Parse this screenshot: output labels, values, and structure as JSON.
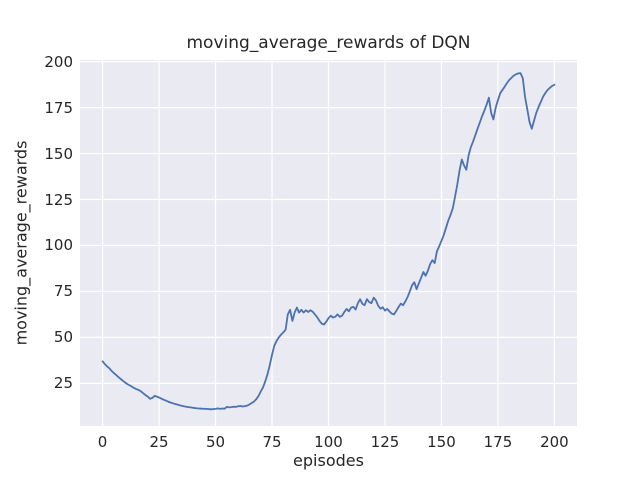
{
  "colors": {
    "figure_background": "#ffffff",
    "axes_background": "#eaeaf2",
    "gridline": "#ffffff",
    "line": "#4c72b0",
    "text": "#262626"
  },
  "chart_data": {
    "type": "line",
    "title": "moving_average_rewards of DQN",
    "xlabel": "episodes",
    "ylabel": "moving_average_rewards",
    "legend": "none",
    "grid": true,
    "x_ticks": [
      0,
      25,
      50,
      75,
      100,
      125,
      150,
      175,
      200
    ],
    "y_ticks": [
      25,
      50,
      75,
      100,
      125,
      150,
      175,
      200
    ],
    "xlim": [
      -10,
      210
    ],
    "ylim": [
      1.8,
      200.9
    ],
    "series_name": "moving_average_rewards",
    "x": [
      0,
      1,
      2,
      3,
      4,
      5,
      6,
      7,
      8,
      9,
      10,
      11,
      12,
      13,
      14,
      15,
      16,
      17,
      18,
      19,
      20,
      21,
      22,
      23,
      24,
      25,
      26,
      27,
      28,
      29,
      30,
      31,
      32,
      33,
      34,
      35,
      36,
      37,
      38,
      39,
      40,
      42,
      44,
      46,
      48,
      50,
      51,
      52,
      53,
      54,
      55,
      56,
      57,
      58,
      59,
      60,
      61,
      62,
      63,
      64,
      65,
      66,
      67,
      68,
      69,
      70,
      71,
      72,
      73,
      74,
      75,
      76,
      77,
      78,
      79,
      80,
      81,
      82,
      83,
      84,
      85,
      86,
      87,
      88,
      89,
      90,
      91,
      92,
      93,
      94,
      95,
      96,
      97,
      98,
      99,
      100,
      101,
      102,
      103,
      104,
      105,
      106,
      107,
      108,
      109,
      110,
      111,
      112,
      113,
      114,
      115,
      116,
      117,
      118,
      119,
      120,
      121,
      122,
      123,
      124,
      125,
      126,
      127,
      128,
      129,
      130,
      131,
      132,
      133,
      134,
      135,
      136,
      137,
      138,
      139,
      140,
      141,
      142,
      143,
      144,
      145,
      146,
      147,
      148,
      149,
      150,
      151,
      152,
      153,
      154,
      155,
      156,
      157,
      158,
      159,
      160,
      161,
      162,
      163,
      164,
      165,
      166,
      167,
      168,
      169,
      170,
      171,
      172,
      173,
      174,
      175,
      176,
      177,
      178,
      179,
      180,
      181,
      182,
      183,
      184,
      185,
      186,
      187,
      188,
      189,
      190,
      191,
      192,
      193,
      194,
      195,
      196,
      197,
      198,
      199,
      200
    ],
    "y": [
      37,
      35.5,
      34.2,
      33.2,
      31.8,
      30.6,
      29.6,
      28.4,
      27.4,
      26.4,
      25.4,
      24.6,
      23.9,
      23.2,
      22.4,
      21.8,
      21.4,
      20.6,
      19.6,
      18.6,
      17.8,
      16.6,
      17.1,
      18.2,
      17.8,
      17.3,
      16.7,
      16.1,
      15.6,
      15.1,
      14.6,
      14.2,
      13.8,
      13.5,
      13.1,
      12.8,
      12.5,
      12.3,
      12.1,
      11.9,
      11.7,
      11.4,
      11.2,
      11.1,
      10.9,
      11.1,
      11.4,
      11.1,
      11.3,
      11.2,
      12.2,
      11.9,
      12.1,
      12.3,
      12.2,
      12.5,
      12.7,
      12.4,
      12.6,
      12.9,
      13.5,
      14.3,
      15.1,
      16.3,
      18.1,
      20.5,
      22.8,
      26,
      30,
      35,
      40.5,
      45.5,
      48,
      50,
      51.5,
      52.7,
      54.2,
      62.5,
      65,
      59,
      63.5,
      66.2,
      63.5,
      65,
      63.5,
      64.8,
      63.8,
      64.8,
      64,
      62.5,
      61,
      59,
      57.5,
      57,
      58.5,
      60.5,
      61.8,
      60.8,
      61.2,
      62.5,
      61.2,
      61.8,
      63.8,
      65.5,
      64.2,
      66.2,
      66.6,
      65.2,
      68.6,
      70.7,
      68.2,
      67.5,
      70.8,
      69.2,
      68.6,
      71.6,
      70.2,
      67.2,
      65.6,
      66.4,
      64.6,
      65.5,
      64.1,
      62.9,
      62.5,
      64.4,
      66.5,
      68.4,
      67.5,
      69.5,
      72,
      75,
      78.4,
      80,
      76.2,
      79.5,
      82.4,
      85.6,
      83.5,
      86.2,
      90,
      92,
      90.4,
      96.8,
      99.6,
      102.6,
      105.6,
      109.6,
      113.4,
      116.6,
      120.2,
      126.4,
      133.2,
      140.6,
      146.8,
      143.6,
      141.2,
      149,
      153.4,
      156.6,
      160,
      163.6,
      167,
      170.4,
      173.4,
      176.6,
      180.4,
      172,
      168.6,
      175,
      179,
      182.8,
      184.6,
      186.4,
      188.4,
      190,
      191.2,
      192.4,
      193.1,
      193.6,
      193.8,
      191,
      181,
      174,
      167,
      163.5,
      168,
      172.2,
      175.4,
      178.2,
      181,
      183,
      184.6,
      185.8,
      186.8,
      187.4
    ]
  }
}
